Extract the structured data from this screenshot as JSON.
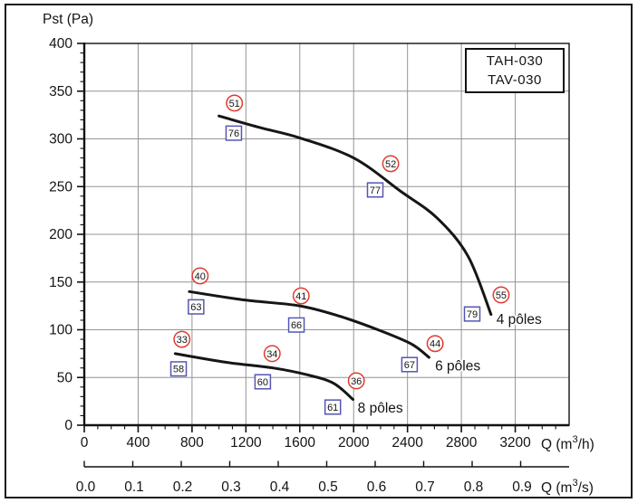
{
  "figure": {
    "y_axis_title": "Pst (Pa)",
    "x_axis_title_h": {
      "pre": "Q (m",
      "sup": "3",
      "post": "/h)"
    },
    "x_axis_title_s": {
      "pre": "Q (m",
      "sup": "3",
      "post": "/s)"
    },
    "legend": {
      "line1": "TAH-030",
      "line2": "TAV-030"
    }
  },
  "colors": {
    "red_marker": "#e03b30",
    "blue_marker": "#5456b4",
    "curve": "#161616",
    "grid": "#949494",
    "axis": "#111111",
    "text": "#141414"
  },
  "chart_data": {
    "type": "line",
    "legend": [
      "TAH-030",
      "TAV-030"
    ],
    "ylabel": "Pst (Pa)",
    "xlabel_primary": "Q (m³/h)",
    "xlabel_secondary": "Q (m³/s)",
    "xlim": [
      0,
      3600
    ],
    "ylim": [
      0,
      400
    ],
    "grid": true,
    "x_ticks": [
      0,
      400,
      800,
      1200,
      1600,
      2000,
      2400,
      2800,
      3200
    ],
    "x_ticks_secondary": [
      "0.0",
      "0.1",
      "0.2",
      "0.3",
      "0.4",
      "0.5",
      "0.6",
      "0.7",
      "0.8",
      "0.9"
    ],
    "y_ticks": [
      0,
      50,
      100,
      150,
      200,
      250,
      300,
      350,
      400
    ],
    "x_minor_step": 100,
    "y_minor_step": 10,
    "series": [
      {
        "name": "4 pôles",
        "label_anchor": [
          3060,
          111
        ],
        "points": [
          [
            1000,
            324
          ],
          [
            1300,
            312
          ],
          [
            1600,
            301
          ],
          [
            2000,
            280
          ],
          [
            2350,
            245
          ],
          [
            2620,
            217
          ],
          [
            2850,
            177
          ],
          [
            3020,
            116
          ]
        ],
        "red_circle_labels": [
          {
            "v": 51,
            "q": 1115,
            "p": 337.5
          },
          {
            "v": 52,
            "q": 2275,
            "p": 274
          },
          {
            "v": 55,
            "q": 3095,
            "p": 136.5
          }
        ],
        "blue_square_labels": [
          {
            "v": 76,
            "q": 1110,
            "p": 306
          },
          {
            "v": 77,
            "q": 2160,
            "p": 246.5
          },
          {
            "v": 79,
            "q": 2880,
            "p": 116.5
          }
        ]
      },
      {
        "name": "6 pôles",
        "label_anchor": [
          2605,
          62.5
        ],
        "points": [
          [
            780,
            140
          ],
          [
            1200,
            131
          ],
          [
            1600,
            125
          ],
          [
            1900,
            114
          ],
          [
            2200,
            99
          ],
          [
            2430,
            85
          ],
          [
            2560,
            71
          ]
        ],
        "red_circle_labels": [
          {
            "v": 40,
            "q": 860,
            "p": 156.5
          },
          {
            "v": 41,
            "q": 1610,
            "p": 135.5
          },
          {
            "v": 44,
            "q": 2605,
            "p": 85.5
          }
        ],
        "blue_square_labels": [
          {
            "v": 63,
            "q": 830,
            "p": 124
          },
          {
            "v": 66,
            "q": 1575,
            "p": 105
          },
          {
            "v": 67,
            "q": 2415,
            "p": 63.5
          }
        ]
      },
      {
        "name": "8 pôles",
        "label_anchor": [
          2030,
          18
        ],
        "points": [
          [
            675,
            75
          ],
          [
            1050,
            66
          ],
          [
            1400,
            60
          ],
          [
            1650,
            53
          ],
          [
            1850,
            44
          ],
          [
            1995,
            27
          ]
        ],
        "red_circle_labels": [
          {
            "v": 33,
            "q": 725,
            "p": 90
          },
          {
            "v": 34,
            "q": 1395,
            "p": 75
          },
          {
            "v": 36,
            "q": 2020,
            "p": 46.5
          }
        ],
        "blue_square_labels": [
          {
            "v": 58,
            "q": 700,
            "p": 59
          },
          {
            "v": 60,
            "q": 1325,
            "p": 45.5
          },
          {
            "v": 61,
            "q": 1845,
            "p": 19
          }
        ]
      }
    ]
  }
}
